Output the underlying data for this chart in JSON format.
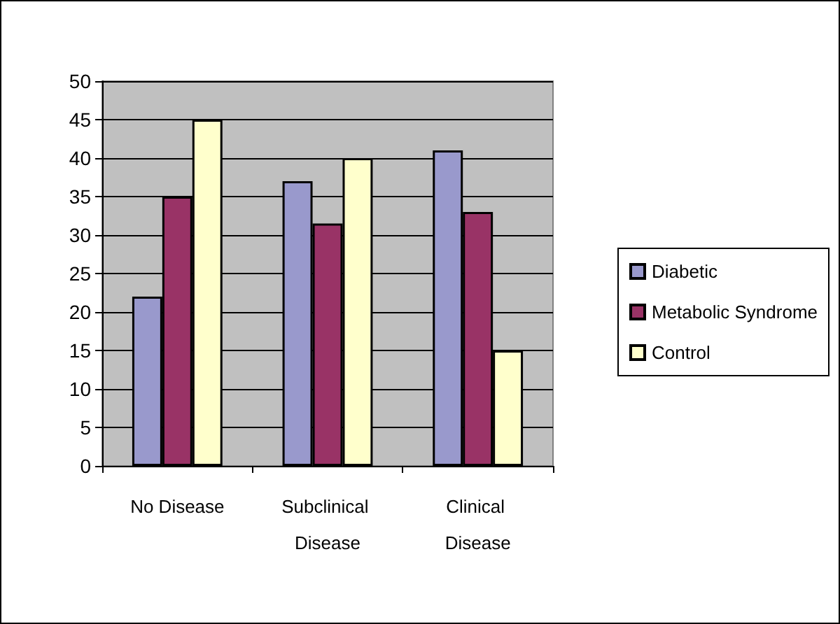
{
  "chart_data": {
    "type": "bar",
    "categories": [
      "No Disease",
      "Subclinical Disease",
      "Clinical Disease"
    ],
    "series": [
      {
        "name": "Diabetic",
        "color": "#9999cc",
        "values": [
          22,
          37,
          41
        ]
      },
      {
        "name": "Metabolic Syndrome",
        "color": "#993366",
        "values": [
          35,
          31.5,
          33
        ]
      },
      {
        "name": "Control",
        "color": "#ffffcc",
        "values": [
          45,
          40,
          15
        ]
      }
    ],
    "ylim": [
      0,
      50
    ],
    "yticks": [
      0,
      5,
      10,
      15,
      20,
      25,
      30,
      35,
      40,
      45,
      50
    ],
    "grid": "y",
    "legend": "right"
  }
}
